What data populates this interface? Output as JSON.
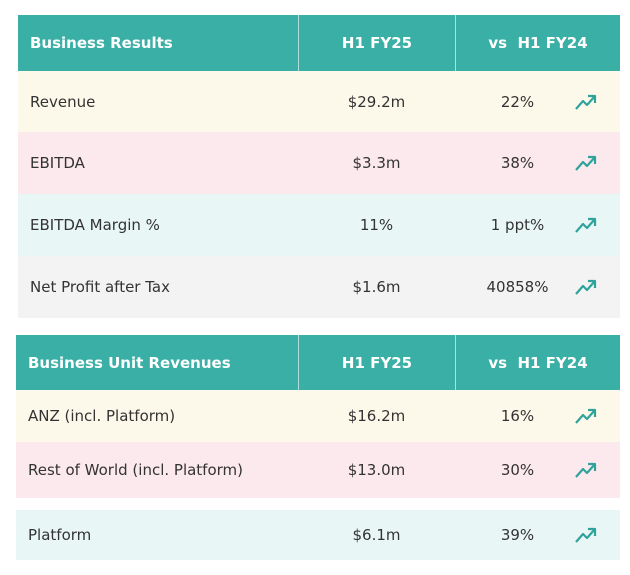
{
  "tables": [
    {
      "header": [
        "Business Results",
        "H1 FY25",
        "vs  H1 FY24"
      ],
      "rows": [
        [
          "Revenue",
          "$29.2m",
          "22%"
        ],
        [
          "EBITDA",
          "$3.3m",
          "38%"
        ],
        [
          "EBITDA Margin %",
          "11%",
          "1 ppt%"
        ],
        [
          "Net Profit after Tax",
          "$1.6m",
          "40858%"
        ]
      ]
    },
    {
      "header": [
        "Business Unit Revenues",
        "H1 FY25",
        "vs  H1 FY24"
      ],
      "rows": [
        [
          "ANZ (incl. Platform)",
          "$16.2m",
          "16%"
        ],
        [
          "Rest of World (incl. Platform)",
          "$13.0m",
          "30%"
        ],
        [
          "Platform",
          "$6.1m",
          "39%"
        ]
      ]
    }
  ]
}
